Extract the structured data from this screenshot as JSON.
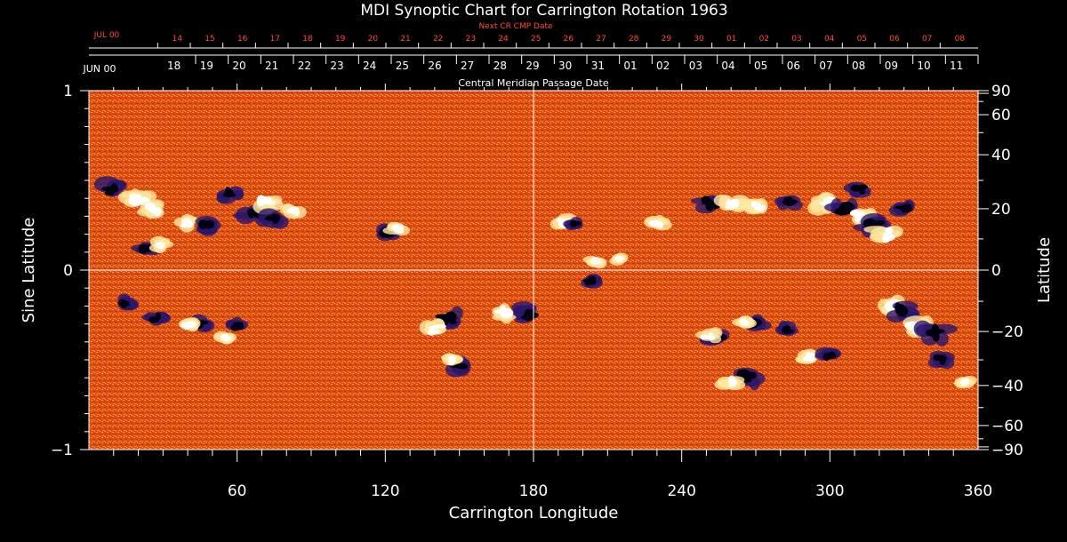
{
  "chart_data": {
    "type": "heatmap",
    "title": "MDI Synoptic Chart for Carrington Rotation 1963",
    "xlabel": "Carrington Longitude",
    "ylabel_left": "Sine Latitude",
    "ylabel_right": "Latitude",
    "xlim": [
      0,
      360
    ],
    "ylim": [
      -1,
      1
    ],
    "x_ticks": [
      60,
      120,
      180,
      240,
      300,
      360
    ],
    "x_tick_labels": [
      "60",
      "120",
      "180",
      "240",
      "300",
      "360"
    ],
    "y_left_ticks": [
      1,
      0,
      -1
    ],
    "y_left_tick_labels": [
      "1",
      "0",
      "−1"
    ],
    "y_right_ticks": [
      90,
      60,
      40,
      20,
      0,
      -20,
      -40,
      -60,
      -90
    ],
    "y_right_tick_labels": [
      "90",
      "60",
      "40",
      "20",
      "0",
      "−20",
      "−40",
      "−60",
      "−90"
    ],
    "cmp_axis": {
      "label": "Central Meridian Passage Date",
      "month_label": "JUN 00",
      "dates": [
        "11",
        "10",
        "09",
        "08",
        "07",
        "06",
        "05",
        "04",
        "03",
        "02",
        "01",
        "31",
        "30",
        "29",
        "28",
        "27",
        "26",
        "25",
        "24",
        "23",
        "22",
        "21",
        "20",
        "19",
        "18"
      ],
      "first_longitude": 360,
      "step_longitude": -13.2
    },
    "next_cr_axis": {
      "label": "Next CR CMP Date",
      "month_label": "JUL 00",
      "dates": [
        "08",
        "07",
        "06",
        "05",
        "04",
        "03",
        "02",
        "01",
        "30",
        "29",
        "28",
        "27",
        "26",
        "25",
        "24",
        "23",
        "22",
        "21",
        "20",
        "19",
        "18",
        "17",
        "16",
        "15",
        "14"
      ]
    },
    "colors": {
      "background": "#dd4a12",
      "mid": "#f07a1e",
      "positive": "#ffffff",
      "pos_halo": "#ffe9a0",
      "negative": "#000010",
      "neg_halo": "#2a166a",
      "axis": "#ffffff",
      "red_label": "#ff4a3a"
    },
    "regions": [
      {
        "lon": 10,
        "lat": 0.45,
        "sign": -1,
        "strength": 0.9
      },
      {
        "lon": 20,
        "lat": 0.4,
        "sign": 1,
        "strength": 0.9
      },
      {
        "lon": 27,
        "lat": 0.34,
        "sign": 1,
        "strength": 0.8
      },
      {
        "lon": 40,
        "lat": 0.26,
        "sign": 1,
        "strength": 0.7
      },
      {
        "lon": 48,
        "lat": 0.25,
        "sign": -1,
        "strength": 0.7
      },
      {
        "lon": 57,
        "lat": 0.42,
        "sign": -1,
        "strength": 0.8
      },
      {
        "lon": 67,
        "lat": 0.32,
        "sign": -1,
        "strength": 1.0
      },
      {
        "lon": 72,
        "lat": 0.38,
        "sign": 1,
        "strength": 0.9
      },
      {
        "lon": 75,
        "lat": 0.28,
        "sign": -1,
        "strength": 0.7
      },
      {
        "lon": 83,
        "lat": 0.33,
        "sign": 1,
        "strength": 0.6
      },
      {
        "lon": 23,
        "lat": 0.12,
        "sign": -1,
        "strength": 0.6
      },
      {
        "lon": 30,
        "lat": 0.14,
        "sign": 1,
        "strength": 0.5
      },
      {
        "lon": 120,
        "lat": 0.21,
        "sign": -1,
        "strength": 0.7
      },
      {
        "lon": 125,
        "lat": 0.23,
        "sign": 1,
        "strength": 0.5
      },
      {
        "lon": 145,
        "lat": -0.27,
        "sign": -1,
        "strength": 0.9
      },
      {
        "lon": 140,
        "lat": -0.33,
        "sign": 1,
        "strength": 0.8
      },
      {
        "lon": 150,
        "lat": -0.53,
        "sign": -1,
        "strength": 0.8
      },
      {
        "lon": 146,
        "lat": -0.5,
        "sign": 1,
        "strength": 0.5
      },
      {
        "lon": 178,
        "lat": -0.24,
        "sign": -1,
        "strength": 1.0
      },
      {
        "lon": 168,
        "lat": -0.24,
        "sign": 1,
        "strength": 0.8
      },
      {
        "lon": 15,
        "lat": -0.18,
        "sign": -1,
        "strength": 0.5
      },
      {
        "lon": 27,
        "lat": -0.27,
        "sign": -1,
        "strength": 0.5
      },
      {
        "lon": 45,
        "lat": -0.3,
        "sign": -1,
        "strength": 0.6
      },
      {
        "lon": 40,
        "lat": -0.31,
        "sign": 1,
        "strength": 0.5
      },
      {
        "lon": 60,
        "lat": -0.31,
        "sign": -1,
        "strength": 0.5
      },
      {
        "lon": 55,
        "lat": -0.38,
        "sign": 1,
        "strength": 0.4
      },
      {
        "lon": 192,
        "lat": 0.27,
        "sign": 1,
        "strength": 0.6
      },
      {
        "lon": 197,
        "lat": 0.26,
        "sign": -1,
        "strength": 0.4
      },
      {
        "lon": 230,
        "lat": 0.26,
        "sign": 1,
        "strength": 0.5
      },
      {
        "lon": 252,
        "lat": 0.37,
        "sign": -1,
        "strength": 0.8
      },
      {
        "lon": 260,
        "lat": 0.36,
        "sign": 1,
        "strength": 0.9
      },
      {
        "lon": 270,
        "lat": 0.35,
        "sign": 1,
        "strength": 0.8
      },
      {
        "lon": 283,
        "lat": 0.38,
        "sign": -1,
        "strength": 0.6
      },
      {
        "lon": 298,
        "lat": 0.37,
        "sign": 1,
        "strength": 0.8
      },
      {
        "lon": 305,
        "lat": 0.33,
        "sign": -1,
        "strength": 1.0
      },
      {
        "lon": 313,
        "lat": 0.3,
        "sign": 1,
        "strength": 1.0
      },
      {
        "lon": 318,
        "lat": 0.24,
        "sign": -1,
        "strength": 1.0
      },
      {
        "lon": 322,
        "lat": 0.2,
        "sign": 1,
        "strength": 0.9
      },
      {
        "lon": 330,
        "lat": 0.35,
        "sign": -1,
        "strength": 0.6
      },
      {
        "lon": 312,
        "lat": 0.45,
        "sign": -1,
        "strength": 0.6
      },
      {
        "lon": 205,
        "lat": 0.05,
        "sign": 1,
        "strength": 0.4
      },
      {
        "lon": 215,
        "lat": 0.06,
        "sign": 1,
        "strength": 0.3
      },
      {
        "lon": 203,
        "lat": -0.06,
        "sign": -1,
        "strength": 0.5
      },
      {
        "lon": 255,
        "lat": -0.38,
        "sign": -1,
        "strength": 0.7
      },
      {
        "lon": 251,
        "lat": -0.37,
        "sign": 1,
        "strength": 0.6
      },
      {
        "lon": 270,
        "lat": -0.3,
        "sign": -1,
        "strength": 0.6
      },
      {
        "lon": 265,
        "lat": -0.29,
        "sign": 1,
        "strength": 0.5
      },
      {
        "lon": 267,
        "lat": -0.6,
        "sign": -1,
        "strength": 0.8
      },
      {
        "lon": 260,
        "lat": -0.62,
        "sign": 1,
        "strength": 0.6
      },
      {
        "lon": 283,
        "lat": -0.33,
        "sign": -1,
        "strength": 0.5
      },
      {
        "lon": 292,
        "lat": -0.48,
        "sign": 1,
        "strength": 0.6
      },
      {
        "lon": 300,
        "lat": -0.47,
        "sign": -1,
        "strength": 0.6
      },
      {
        "lon": 325,
        "lat": -0.2,
        "sign": 1,
        "strength": 0.9
      },
      {
        "lon": 330,
        "lat": -0.23,
        "sign": -1,
        "strength": 0.9
      },
      {
        "lon": 335,
        "lat": -0.32,
        "sign": 1,
        "strength": 1.0
      },
      {
        "lon": 342,
        "lat": -0.35,
        "sign": -1,
        "strength": 1.0
      },
      {
        "lon": 345,
        "lat": -0.5,
        "sign": -1,
        "strength": 0.6
      },
      {
        "lon": 355,
        "lat": -0.62,
        "sign": 1,
        "strength": 0.4
      }
    ]
  }
}
